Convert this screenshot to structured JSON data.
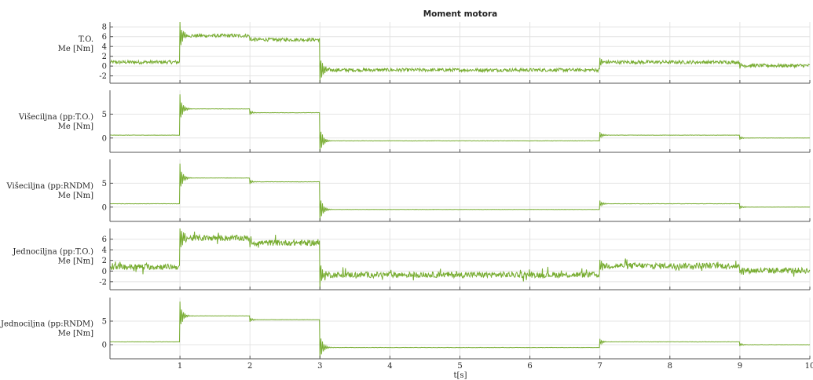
{
  "chart_data": {
    "type": "line",
    "title": "Moment motora",
    "xlabel": "t[s]",
    "xlim": [
      0,
      10
    ],
    "xticks": [
      1,
      2,
      3,
      4,
      5,
      6,
      7,
      8,
      9,
      10
    ],
    "line_color": "#77ac30",
    "grid": true,
    "panels": [
      {
        "ylabel": [
          "T.O.",
          "Me [Nm]"
        ],
        "ylim": [
          -3.5,
          9
        ],
        "yticks": [
          -2,
          0,
          2,
          4,
          6,
          8
        ],
        "noise": 0.35,
        "segments": [
          {
            "t_start": 0,
            "t_end": 1.0,
            "value": 0.8
          },
          {
            "t_start": 1.0,
            "t_end": 2.0,
            "value": 6.2
          },
          {
            "t_start": 2.0,
            "t_end": 3.0,
            "value": 5.4
          },
          {
            "t_start": 3.0,
            "t_end": 7.0,
            "value": -0.8
          },
          {
            "t_start": 7.0,
            "t_end": 9.0,
            "value": 0.8
          },
          {
            "t_start": 9.0,
            "t_end": 10,
            "value": 0.1
          }
        ]
      },
      {
        "ylabel": [
          "Višeciljna (pp:T.O.)",
          "Me [Nm]"
        ],
        "ylim": [
          -3,
          10
        ],
        "yticks": [
          0,
          5
        ],
        "noise": 0.03,
        "segments": [
          {
            "t_start": 0,
            "t_end": 1.0,
            "value": 0.6
          },
          {
            "t_start": 1.0,
            "t_end": 2.0,
            "value": 6.1
          },
          {
            "t_start": 2.0,
            "t_end": 3.0,
            "value": 5.3
          },
          {
            "t_start": 3.0,
            "t_end": 7.0,
            "value": -0.6
          },
          {
            "t_start": 7.0,
            "t_end": 9.0,
            "value": 0.6
          },
          {
            "t_start": 9.0,
            "t_end": 10,
            "value": 0.0
          }
        ]
      },
      {
        "ylabel": [
          "Višeciljna (pp:RNDM)",
          "Me [Nm]"
        ],
        "ylim": [
          -3,
          10
        ],
        "yticks": [
          0,
          5
        ],
        "noise": 0.03,
        "segments": [
          {
            "t_start": 0,
            "t_end": 1.0,
            "value": 0.7
          },
          {
            "t_start": 1.0,
            "t_end": 2.0,
            "value": 6.1
          },
          {
            "t_start": 2.0,
            "t_end": 3.0,
            "value": 5.3
          },
          {
            "t_start": 3.0,
            "t_end": 7.0,
            "value": -0.5
          },
          {
            "t_start": 7.0,
            "t_end": 9.0,
            "value": 0.7
          },
          {
            "t_start": 9.0,
            "t_end": 10,
            "value": 0.0
          }
        ]
      },
      {
        "ylabel": [
          "Jednociljna (pp:T.O.)",
          "Me [Nm]"
        ],
        "ylim": [
          -3.5,
          8
        ],
        "yticks": [
          -2,
          0,
          2,
          4,
          6
        ],
        "noise": 0.55,
        "segments": [
          {
            "t_start": 0,
            "t_end": 1.0,
            "value": 0.8
          },
          {
            "t_start": 1.0,
            "t_end": 2.0,
            "value": 6.2
          },
          {
            "t_start": 2.0,
            "t_end": 3.0,
            "value": 5.3
          },
          {
            "t_start": 3.0,
            "t_end": 7.0,
            "value": -0.7
          },
          {
            "t_start": 7.0,
            "t_end": 9.0,
            "value": 1.0
          },
          {
            "t_start": 9.0,
            "t_end": 10,
            "value": 0.1
          }
        ]
      },
      {
        "ylabel": [
          "Jednociljna (pp:RNDM)",
          "Me [Nm]"
        ],
        "ylim": [
          -3,
          10
        ],
        "yticks": [
          0,
          5
        ],
        "noise": 0.03,
        "segments": [
          {
            "t_start": 0,
            "t_end": 1.0,
            "value": 0.6
          },
          {
            "t_start": 1.0,
            "t_end": 2.0,
            "value": 6.1
          },
          {
            "t_start": 2.0,
            "t_end": 3.0,
            "value": 5.3
          },
          {
            "t_start": 3.0,
            "t_end": 7.0,
            "value": -0.6
          },
          {
            "t_start": 7.0,
            "t_end": 9.0,
            "value": 0.6
          },
          {
            "t_start": 9.0,
            "t_end": 10,
            "value": 0.0
          }
        ]
      }
    ]
  }
}
